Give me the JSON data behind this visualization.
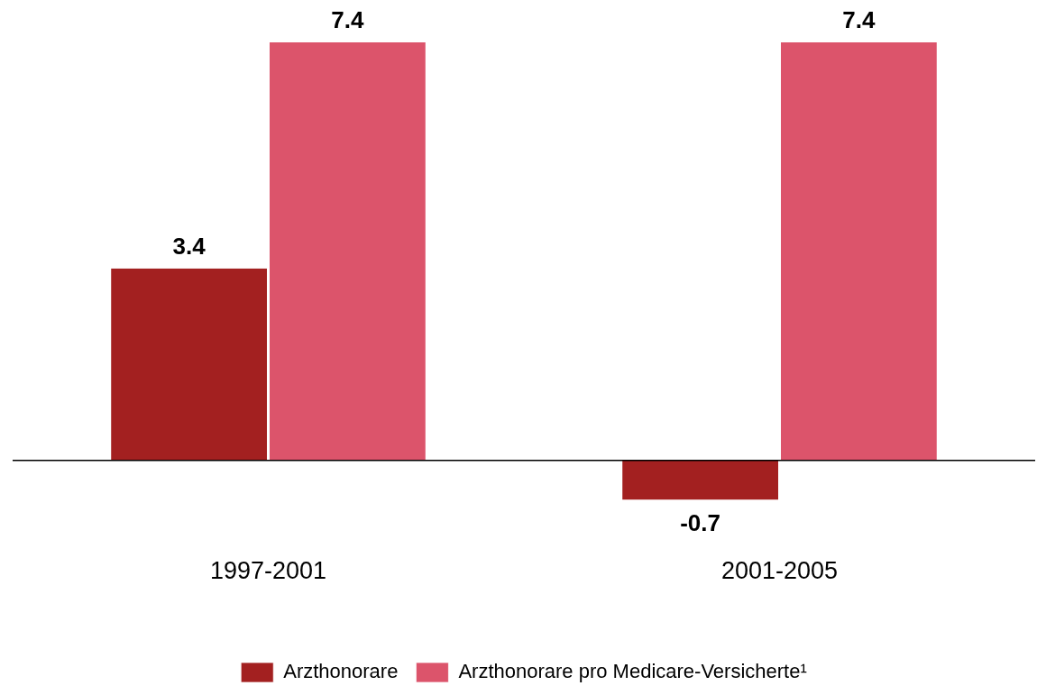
{
  "chart_data": {
    "type": "bar",
    "categories": [
      "1997-2001",
      "2001-2005"
    ],
    "series": [
      {
        "name": "Arzthonorare",
        "color": "#a32020",
        "values": [
          3.4,
          -0.7
        ]
      },
      {
        "name": "Arzthonorare pro Medicare-Versicherte¹",
        "color": "#dc546b",
        "values": [
          7.4,
          7.4
        ]
      }
    ],
    "data_labels": true,
    "legend": "bottom",
    "grid": false
  }
}
